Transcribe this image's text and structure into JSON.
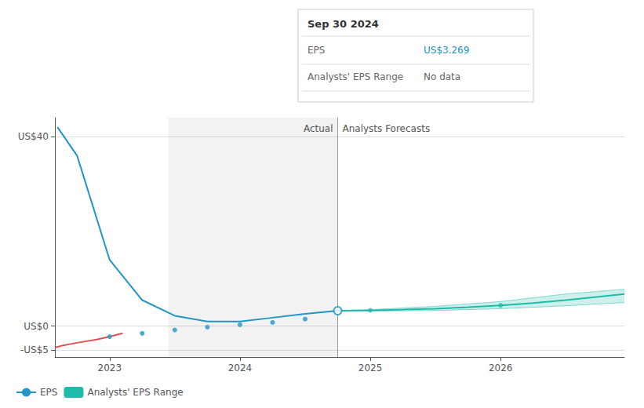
{
  "chart_data": {
    "type": "line",
    "xlim": [
      2022.58,
      2026.95
    ],
    "xticks": [
      2023,
      2024,
      2025,
      2026
    ],
    "ylim": [
      -6.5,
      44
    ],
    "yticks": [
      {
        "value": 40,
        "label": "US$40"
      },
      {
        "value": 0,
        "label": "US$0"
      },
      {
        "value": -5,
        "label": "-US$5"
      }
    ],
    "grid": true,
    "legend": "bottom left",
    "highlight_x": [
      2023.45,
      2024.75
    ],
    "divider_x": 2024.75,
    "annotations": [
      "Actual",
      "Analysts Forecasts"
    ],
    "tooltip": {
      "title": "Sep 30 2024",
      "rows": [
        {
          "label": "EPS",
          "value": "US$3.269",
          "color": "#2196c4"
        },
        {
          "label": "Analysts' EPS Range",
          "value": "No data"
        }
      ]
    },
    "series": [
      {
        "name": "EPS",
        "type": "line",
        "color": "#2196c4",
        "x": [
          2022.6,
          2022.75,
          2023.0,
          2023.25,
          2023.5,
          2023.75,
          2024.0,
          2024.25,
          2024.5,
          2024.75
        ],
        "values": [
          42.0,
          36.0,
          14.0,
          5.5,
          2.2,
          1.0,
          1.0,
          1.8,
          2.6,
          3.269
        ]
      },
      {
        "type": "line",
        "color": "#e05252",
        "x": [
          2022.58,
          2022.65,
          2022.75,
          2022.9,
          2023.0,
          2023.1
        ],
        "values": [
          -4.5,
          -4.0,
          -3.5,
          -2.8,
          -2.2,
          -1.5
        ]
      },
      {
        "type": "scatter",
        "color": "#2196c4",
        "marker": "circle",
        "x": [
          2023.0,
          2023.25,
          2023.5,
          2023.75,
          2024.0,
          2024.25,
          2024.5
        ],
        "values": [
          -2.2,
          -1.5,
          -0.8,
          -0.2,
          0.3,
          0.8,
          1.5
        ]
      },
      {
        "type": "scatter",
        "color": "#2196c4",
        "marker": "open_circle",
        "x": [
          2024.75
        ],
        "values": [
          3.269
        ]
      },
      {
        "type": "line",
        "color": "#1dbbaa",
        "x": [
          2024.75,
          2025.0,
          2025.25,
          2025.5,
          2025.75,
          2026.0,
          2026.25,
          2026.5,
          2026.75,
          2026.95
        ],
        "values": [
          3.269,
          3.35,
          3.5,
          3.7,
          4.0,
          4.4,
          4.9,
          5.5,
          6.2,
          6.8
        ]
      },
      {
        "name": "Analysts' EPS Range",
        "type": "band",
        "color": "#1dbbaa",
        "x": [
          2024.75,
          2025.0,
          2025.5,
          2026.0,
          2026.5,
          2026.95
        ],
        "upper": [
          3.269,
          3.5,
          4.2,
          5.2,
          6.8,
          7.8
        ],
        "lower": [
          3.269,
          3.2,
          3.3,
          3.7,
          4.3,
          5.0
        ]
      },
      {
        "type": "scatter",
        "color": "#1dbbaa",
        "marker": "circle",
        "x": [
          2025.0,
          2026.0
        ],
        "values": [
          3.35,
          4.4
        ]
      }
    ]
  }
}
